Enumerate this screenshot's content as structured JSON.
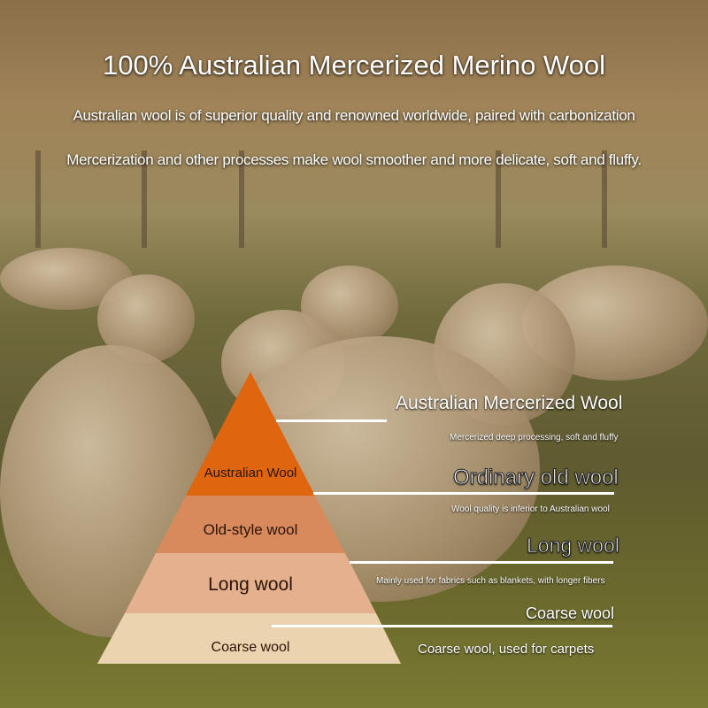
{
  "header": {
    "title": "100% Australian Mercerized Merino Wool",
    "line1": "Australian wool is of superior quality and renowned worldwide, paired with carbonization",
    "line2": "Mercerization and other processes make wool smoother and more delicate, soft and fluffy."
  },
  "pyramid": {
    "levels": [
      {
        "label": "Australian Wool",
        "color": "#e0650f"
      },
      {
        "label": "Old-style wool",
        "color": "#d98a5c"
      },
      {
        "label": "Long wool",
        "color": "#e5b08e"
      },
      {
        "label": "Coarse wool",
        "color": "#ecd3b0"
      }
    ]
  },
  "callouts": [
    {
      "title": "Australian Mercerized Wool",
      "desc": "Mercerized deep processing, soft and fluffy"
    },
    {
      "title": "Ordinary old wool",
      "desc": "Wool quality is inferior to Australian wool"
    },
    {
      "title": "Long wool",
      "desc": "Mainly used for fabrics such as blankets, with longer fibers"
    },
    {
      "title": "Coarse wool",
      "desc": "Coarse wool, used for carpets"
    }
  ]
}
